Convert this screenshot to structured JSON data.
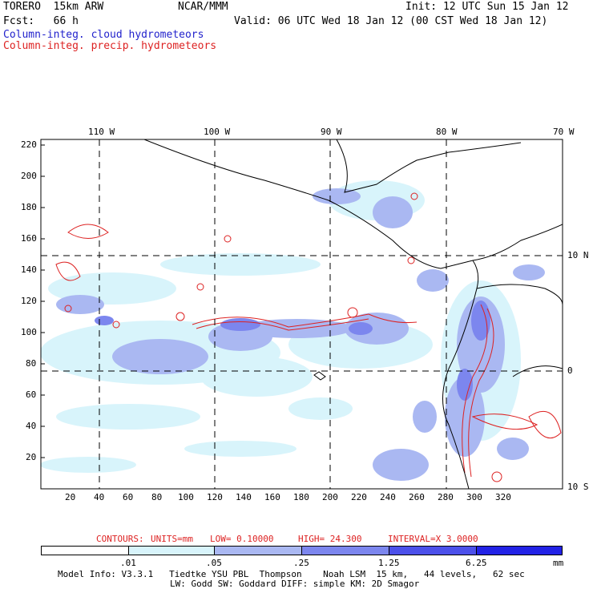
{
  "header": {
    "model": "TORERO  15km ARW",
    "org": "NCAR/MMM",
    "init": "Init: 12 UTC Sun 15 Jan 12",
    "fcst": "Fcst:   66 h",
    "valid": "Valid: 06 UTC Wed 18 Jan 12 (00 CST Wed 18 Jan 12)",
    "field1": "Column-integ. cloud hydrometeors",
    "field2": "Column-integ. precip. hydrometeors"
  },
  "axes": {
    "top_lon": [
      "110 W",
      "100 W",
      "90 W",
      "80 W",
      "70 W"
    ],
    "right_lat": [
      "10 N",
      "0",
      "10 S"
    ],
    "y_ticks": [
      "220",
      "200",
      "180",
      "160",
      "140",
      "120",
      "100",
      "80",
      "60",
      "40",
      "20"
    ],
    "x_ticks": [
      "20",
      "40",
      "60",
      "80",
      "100",
      "120",
      "140",
      "160",
      "180",
      "200",
      "220",
      "240",
      "260",
      "280",
      "300",
      "320"
    ]
  },
  "contour_info": {
    "contours": "CONTOURS:",
    "units": "UNITS=mm",
    "low": "LOW= 0.10000",
    "high": "HIGH=  24.300",
    "interval": "INTERVAL=X  3.0000"
  },
  "legend": {
    "labels": [
      ".01",
      ".05",
      ".25",
      "1.25",
      "6.25",
      "mm"
    ],
    "colors": [
      "#ffffff",
      "#d8f4fb",
      "#aab8f2",
      "#7c86ee",
      "#4c50ea",
      "#2222e6"
    ]
  },
  "footer": {
    "line1": "Model Info: V3.3.1   Tiedtke YSU PBL  Thompson    Noah LSM  15 km,   44 levels,   62 sec",
    "line2": "LW: Godd SW: Goddard DIFF: simple KM: 2D Smagor"
  }
}
